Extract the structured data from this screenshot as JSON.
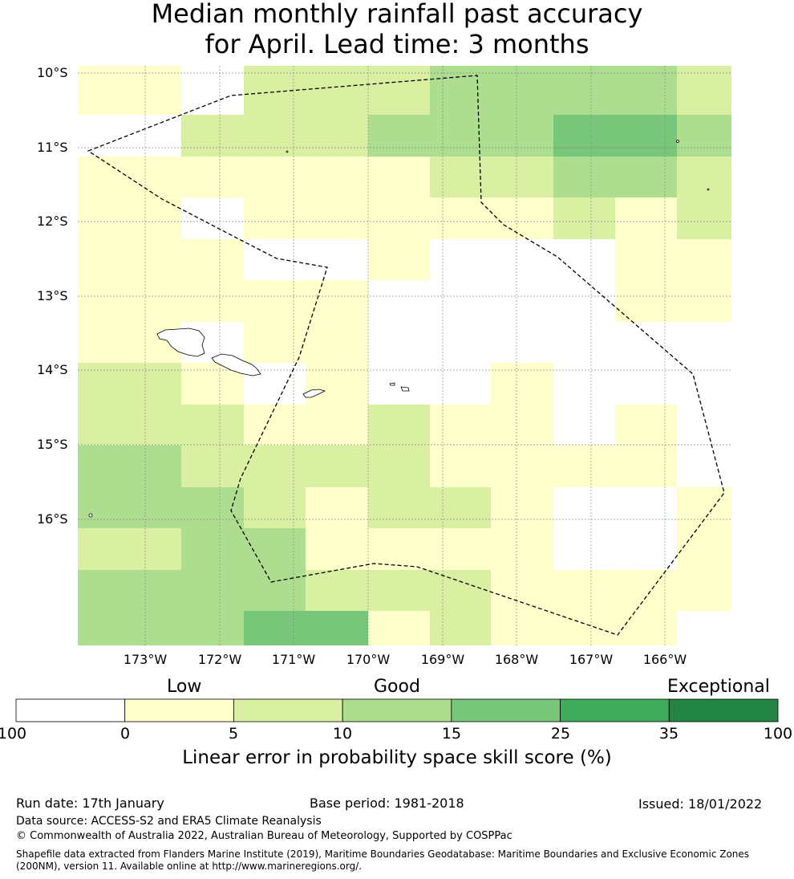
{
  "title": {
    "line1": "Median monthly rainfall past accuracy",
    "line2": "for April. Lead time: 3 months"
  },
  "map": {
    "lat_labels": [
      "10°S",
      "11°S",
      "12°S",
      "13°S",
      "14°S",
      "15°S",
      "16°S"
    ],
    "lon_labels": [
      "173°W",
      "172°W",
      "171°W",
      "170°W",
      "169°W",
      "168°W",
      "167°W",
      "166°W"
    ],
    "bin_colors": [
      "#ffffff",
      "#ffffcc",
      "#d9f0a3",
      "#addd8e",
      "#78c679",
      "#41ab5d",
      "#238443"
    ],
    "grid_categories": [
      "1022233332",
      "0222333443",
      "1111122332",
      "1011111212",
      "1100100011",
      "1111000011",
      "1011000000",
      "2101001000",
      "2211211010",
      "3222211110",
      "3321221001",
      "2331111001",
      "3332221111",
      "3344121110"
    ]
  },
  "colorbar": {
    "categories": [
      "Low",
      "Good",
      "Exceptional"
    ],
    "ticks": [
      "-100",
      "0",
      "5",
      "10",
      "15",
      "25",
      "35",
      "100"
    ],
    "colors": [
      "#ffffff",
      "#ffffcc",
      "#d9f0a3",
      "#addd8e",
      "#78c679",
      "#41ab5d",
      "#238443"
    ],
    "label": "Linear error in probability space skill score (%)"
  },
  "footer": {
    "run_date": "Run date: 17th January",
    "base_period": "Base period: 1981-2018",
    "issued": "Issued: 18/01/2022",
    "data_source": "Data source: ACCESS-S2 and ERA5 Climate Reanalysis",
    "copyright": "© Commonwealth of Australia 2022, Australian Bureau of Meteorology, Supported by COSPPac",
    "shapefile_line1": "Shapefile data extracted from Flanders Marine Institute (2019), Maritime Boundaries Geodatabase: Maritime Boundaries and Exclusive Economic Zones",
    "shapefile_line2": "(200NM), version 11. Available online at http://www.marineregions.org/."
  }
}
